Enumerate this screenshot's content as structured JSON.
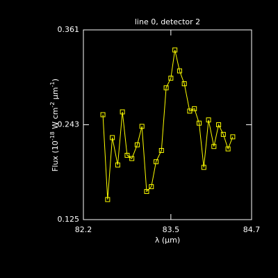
{
  "chart_data": {
    "type": "line",
    "title": "line 0, detector 2",
    "xlabel": "λ (μm)",
    "ylabel": [
      "Flux (10",
      "-18",
      " W cm",
      "-2",
      " μm",
      "-1",
      ")"
    ],
    "x": [
      82.49,
      82.56,
      82.63,
      82.71,
      82.78,
      82.85,
      82.92,
      83.0,
      83.07,
      83.14,
      83.21,
      83.28,
      83.36,
      83.43,
      83.5,
      83.56,
      83.63,
      83.7,
      83.78,
      83.85,
      83.92,
      83.99,
      84.06,
      84.14,
      84.21,
      84.28,
      84.35,
      84.42
    ],
    "series": [
      {
        "color": "#ffff00",
        "values": [
          0.2555,
          0.15,
          0.227,
          0.193,
          0.259,
          0.205,
          0.201,
          0.218,
          0.241,
          0.16,
          0.166,
          0.197,
          0.211,
          0.289,
          0.301,
          0.336,
          0.31,
          0.294,
          0.26,
          0.263,
          0.245,
          0.19,
          0.249,
          0.216,
          0.243,
          0.231,
          0.213,
          0.228
        ]
      }
    ],
    "xlim": [
      82.2,
      84.7
    ],
    "xticks": [
      82.2,
      83.5,
      84.7
    ],
    "ylim": [
      0.125,
      0.361
    ],
    "yticks": [
      0.125,
      0.243,
      0.361
    ],
    "markers": "square"
  }
}
